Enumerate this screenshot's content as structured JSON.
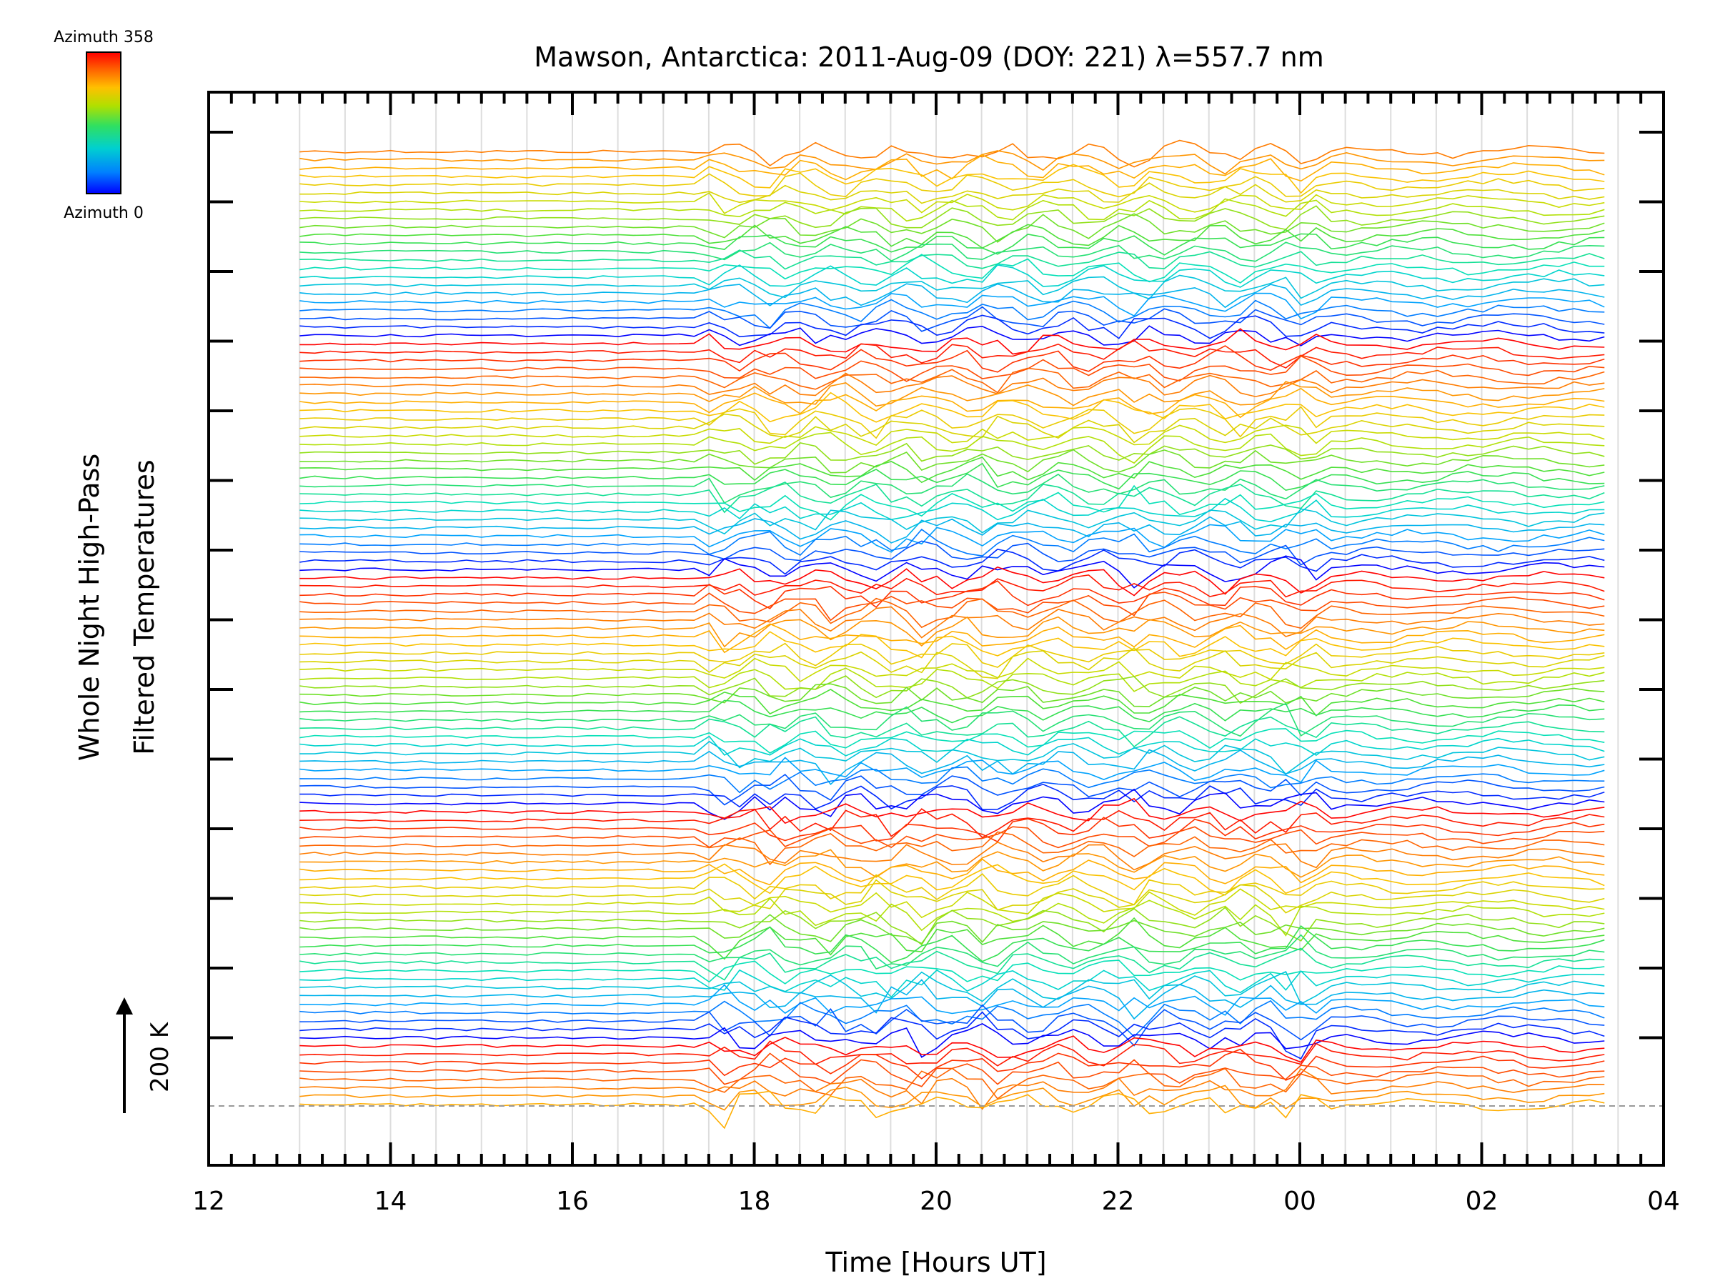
{
  "chart_data": {
    "type": "line",
    "title": "Mawson, Antarctica: 2011-Aug-09 (DOY: 221) λ=557.7 nm",
    "xlabel": "Time [Hours UT]",
    "ylabel": "Whole Night High-Pass",
    "ylabel2": "Filtered Temperatures",
    "x_ticks": [
      "12",
      "14",
      "16",
      "18",
      "20",
      "22",
      "00",
      "02",
      "04"
    ],
    "xlim_hours": [
      12,
      28
    ],
    "data_span_hours": [
      13.0,
      27.35
    ],
    "scale_bar": {
      "label": "200 K",
      "value_K": 200
    },
    "colorbar": {
      "top_label": "Azimuth 358",
      "bottom_label": "Azimuth 0",
      "min_deg": 0,
      "max_deg": 358,
      "colors": [
        "#0000ff",
        "#00a0ff",
        "#00e0c0",
        "#40e040",
        "#c0e000",
        "#ffc000",
        "#ff6000",
        "#ff0000"
      ]
    },
    "grid": true,
    "series_note": "stacked traces, one per sky azimuth, coloured by azimuth (repeating 0-358 cycle per zenith ring)",
    "n_traces": 115,
    "activity_events_hours": [
      17.7,
      18.2,
      18.8,
      19.4,
      19.8,
      20.6,
      22.2,
      23.3,
      23.9,
      24.0
    ]
  }
}
